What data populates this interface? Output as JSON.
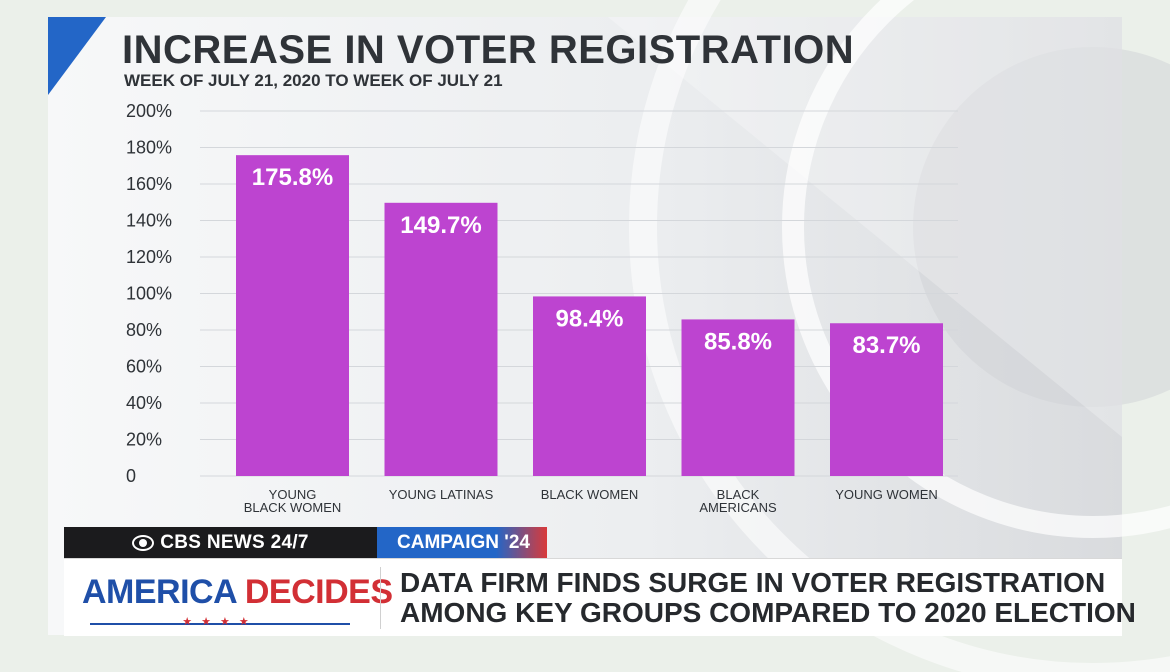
{
  "chart_data": {
    "type": "bar",
    "title": "INCREASE IN VOTER REGISTRATION",
    "subtitle": "WEEK OF JULY 21, 2020 TO WEEK OF JULY 21",
    "categories": [
      [
        "YOUNG",
        "BLACK WOMEN"
      ],
      [
        "YOUNG LATINAS"
      ],
      [
        "BLACK WOMEN"
      ],
      [
        "BLACK",
        "AMERICANS"
      ],
      [
        "YOUNG WOMEN"
      ]
    ],
    "values": [
      175.8,
      149.7,
      98.4,
      85.8,
      83.7
    ],
    "data_labels": [
      "175.8%",
      "149.7%",
      "98.4%",
      "85.8%",
      "83.7%"
    ],
    "yticks": [
      0,
      20,
      40,
      60,
      80,
      100,
      120,
      140,
      160,
      180,
      200
    ],
    "ytick_labels": [
      "0",
      "20%",
      "40%",
      "60%",
      "80%",
      "100%",
      "120%",
      "140%",
      "160%",
      "180%",
      "200%"
    ],
    "ylim": [
      0,
      200
    ],
    "grid": true,
    "bar_color": "#bd44d0"
  },
  "ticker": {
    "network": "CBS NEWS 24/7",
    "segment": "CAMPAIGN '24"
  },
  "lower_third": {
    "brand_part1": "AMERICA",
    "brand_part2": "DECIDES",
    "brand_stars": "★★★★",
    "headline_line1": "DATA FIRM FINDS SURGE IN VOTER REGISTRATION",
    "headline_line2": "AMONG KEY GROUPS COMPARED TO 2020 ELECTION"
  },
  "colors": {
    "accent_blue": "#2366c7",
    "accent_red": "#d22f35",
    "title_text": "#2f3338"
  }
}
